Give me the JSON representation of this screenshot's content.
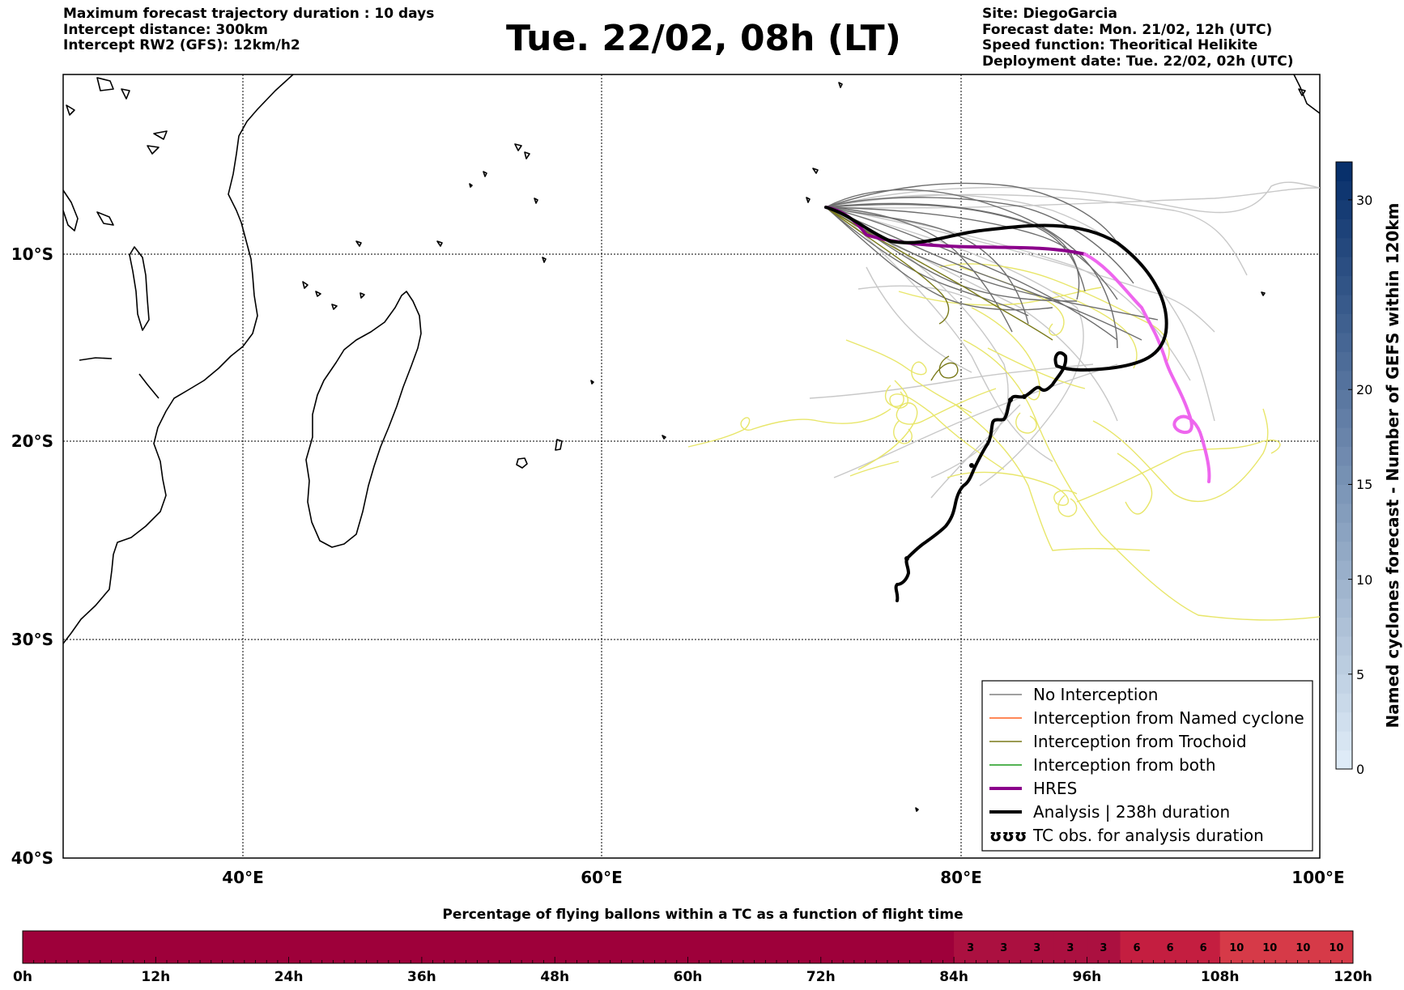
{
  "header": {
    "left": [
      "Maximum forecast trajectory duration : 10 days",
      "Intercept distance: 300km",
      "Intercept RW2 (GFS):  12km/h2"
    ],
    "right": [
      "Site: DiegoGarcia",
      "Forecast date: Mon. 21/02, 12h (UTC)",
      "Speed function: Theoritical Helikite",
      "Deployment date: Tue. 22/02, 02h (UTC)"
    ],
    "title": "Tue. 22/02, 08h (LT)"
  },
  "map": {
    "lon_range": [
      30,
      100
    ],
    "lat_range": [
      -40,
      -2.5
    ],
    "lat_labels": [
      "10°S",
      "20°S",
      "30°S",
      "40°S"
    ],
    "lon_labels": [
      "40°E",
      "60°E",
      "80°E",
      "100°E"
    ],
    "grid": true
  },
  "legend": {
    "items": [
      {
        "label": "No Interception",
        "color": "#808080"
      },
      {
        "label": "Interception from Named cyclone",
        "color": "#ff6020"
      },
      {
        "label": "Interception from Trochoid",
        "color": "#7a7a1a"
      },
      {
        "label": "Interception from both",
        "color": "#1a9a1a"
      },
      {
        "label": "HRES",
        "color": "#8b008b"
      },
      {
        "label": "Analysis | 238h duration",
        "color": "#000000"
      },
      {
        "label": "TC obs. for analysis duration",
        "symbol": "ʊʊʊ",
        "color": "#000000"
      }
    ]
  },
  "colorbar": {
    "label": "Named cyclones forecast - Number of GEFS within 120km",
    "ticks": [
      "0",
      "5",
      "10",
      "15",
      "20",
      "30"
    ],
    "range": [
      0,
      32
    ]
  },
  "percentage_bar": {
    "title": "Percentage of flying ballons within a TC as a function of flight time",
    "tick_labels": [
      "0h",
      "12h",
      "24h",
      "36h",
      "48h",
      "60h",
      "72h",
      "84h",
      "96h",
      "108h",
      "120h"
    ],
    "cells_from_84h": [
      "3",
      "3",
      "3",
      "3",
      "3",
      "6",
      "6",
      "6",
      "10",
      "10",
      "10",
      "10"
    ]
  },
  "chart_data": {
    "type": "bar",
    "title": "Percentage of flying ballons within a TC as a function of flight time",
    "categories": [
      "84h",
      "87h",
      "90h",
      "93h",
      "96h",
      "99h",
      "102h",
      "105h",
      "108h",
      "111h",
      "114h",
      "117h"
    ],
    "values": [
      3,
      3,
      3,
      3,
      3,
      6,
      6,
      6,
      10,
      10,
      10,
      10
    ]
  }
}
